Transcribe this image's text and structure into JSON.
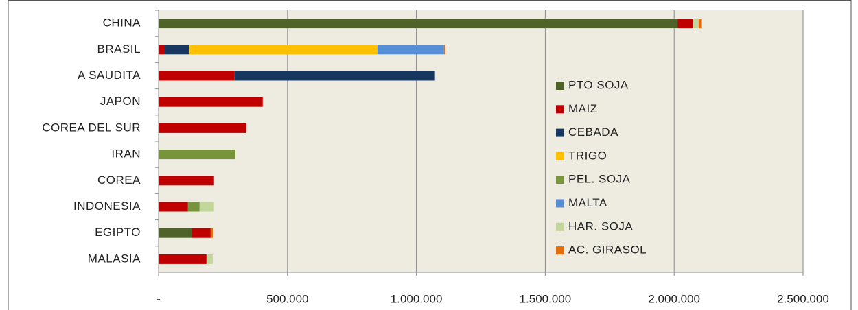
{
  "chart_data": {
    "type": "bar",
    "orientation": "horizontal",
    "stacked": true,
    "categories": [
      "CHINA",
      "BRASIL",
      "A SAUDITA",
      "JAPON",
      "COREA DEL SUR",
      "IRAN",
      "COREA",
      "INDONESIA",
      "EGIPTO",
      "MALASIA"
    ],
    "series": [
      {
        "name": "PTO SOJA",
        "color": "#4f6228",
        "values": [
          2013000,
          0,
          0,
          0,
          0,
          0,
          0,
          0,
          128000,
          0
        ]
      },
      {
        "name": "MAIZ",
        "color": "#c00000",
        "values": [
          61000,
          24000,
          295000,
          404000,
          340000,
          0,
          215000,
          114000,
          74000,
          186000
        ]
      },
      {
        "name": "CEBADA",
        "color": "#17375e",
        "values": [
          0,
          96000,
          777000,
          0,
          0,
          0,
          0,
          0,
          0,
          0
        ]
      },
      {
        "name": "TRIGO",
        "color": "#ffc000",
        "values": [
          0,
          729000,
          0,
          0,
          0,
          0,
          0,
          0,
          0,
          0
        ]
      },
      {
        "name": "PEL. SOJA",
        "color": "#77933c",
        "values": [
          0,
          0,
          0,
          0,
          0,
          298000,
          0,
          45000,
          0,
          0
        ]
      },
      {
        "name": "MALTA",
        "color": "#558ed5",
        "values": [
          0,
          258000,
          0,
          0,
          0,
          0,
          0,
          0,
          0,
          0
        ]
      },
      {
        "name": "HAR. SOJA",
        "color": "#c3d69b",
        "values": [
          21000,
          0,
          0,
          0,
          0,
          0,
          0,
          56000,
          0,
          24000
        ]
      },
      {
        "name": "AC. GIRASOL",
        "color": "#e46c0a",
        "values": [
          10000,
          5000,
          0,
          0,
          0,
          0,
          0,
          0,
          10000,
          0
        ]
      }
    ],
    "xlim": [
      0,
      2500000
    ],
    "xticks": [
      {
        "value": 0,
        "label": "-"
      },
      {
        "value": 500000,
        "label": "500.000"
      },
      {
        "value": 1000000,
        "label": "1.000.000"
      },
      {
        "value": 1500000,
        "label": "1.500.000"
      },
      {
        "value": 2000000,
        "label": "2.000.000"
      },
      {
        "value": 2500000,
        "label": "2.500.000"
      }
    ],
    "grid": true,
    "legend": "right"
  }
}
